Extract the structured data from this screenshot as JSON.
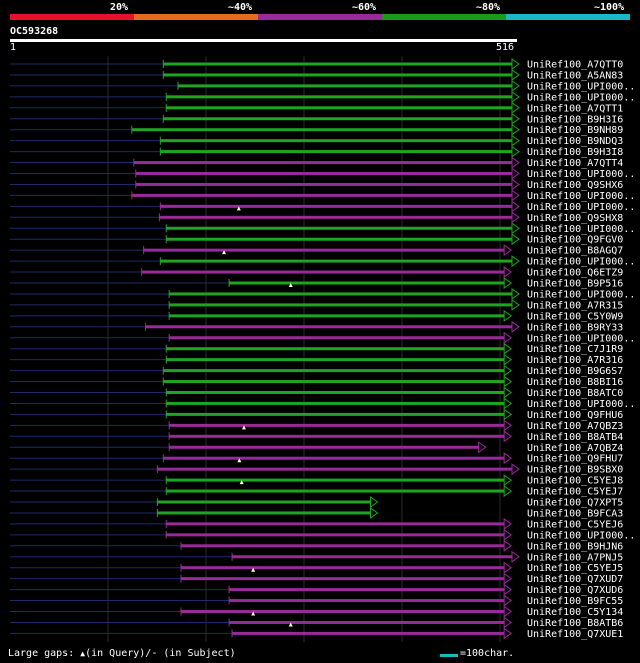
{
  "scale": {
    "labels": [
      "20%",
      "~40%",
      "~60%",
      "~80%",
      "~100%"
    ],
    "colors": [
      "#e8102a",
      "#e46c1c",
      "#9a2a9a",
      "#1a9a1a",
      "#18b8c8"
    ]
  },
  "query": {
    "id": "OC593268",
    "start_label": "1",
    "end_label": "516",
    "length": 516
  },
  "colors": {
    "green": "#1fa51f",
    "purple": "#9a2a9a",
    "dashes": "#1e2a6a",
    "grid": "#2a2a2a"
  },
  "hits": [
    {
      "name": "UniRef100_A7QTT0",
      "qs": 156,
      "qe": 516,
      "c": "green",
      "arrow": true
    },
    {
      "name": "UniRef100_A5AN83",
      "qs": 156,
      "qe": 516,
      "c": "green",
      "arrow": true
    },
    {
      "name": "UniRef100_UPI000..",
      "qs": 171,
      "qe": 516,
      "c": "green",
      "arrow": true
    },
    {
      "name": "UniRef100_UPI000..",
      "qs": 159,
      "qe": 516,
      "c": "green",
      "arrow": true
    },
    {
      "name": "UniRef100_A7QTT1",
      "qs": 159,
      "qe": 516,
      "c": "green",
      "arrow": true
    },
    {
      "name": "UniRef100_B9H3I6",
      "qs": 156,
      "qe": 516,
      "c": "green",
      "arrow": true
    },
    {
      "name": "UniRef100_B9NH89",
      "qs": 124,
      "qe": 516,
      "c": "green",
      "arrow": true
    },
    {
      "name": "UniRef100_B9NDQ3",
      "qs": 153,
      "qe": 516,
      "c": "green",
      "arrow": true
    },
    {
      "name": "UniRef100_B9H3I8",
      "qs": 153,
      "qe": 516,
      "c": "green",
      "arrow": true
    },
    {
      "name": "UniRef100_A7QTT4",
      "qs": 126,
      "qe": 516,
      "c": "purple",
      "arrow": true
    },
    {
      "name": "UniRef100_UPI000..",
      "qs": 128,
      "qe": 516,
      "c": "purple",
      "arrow": true
    },
    {
      "name": "UniRef100_Q9SHX6",
      "qs": 128,
      "qe": 516,
      "c": "purple",
      "arrow": true
    },
    {
      "name": "UniRef100_UPI000..",
      "qs": 124,
      "qe": 516,
      "c": "purple",
      "arrow": true
    },
    {
      "name": "UniRef100_UPI000..",
      "qs": 153,
      "qe": 516,
      "c": "purple",
      "arrow": true
    },
    {
      "name": "UniRef100_Q9SHX8",
      "qs": 152,
      "qe": 516,
      "c": "purple",
      "arrow": true
    },
    {
      "name": "UniRef100_UPI000..",
      "qs": 159,
      "qe": 516,
      "c": "green",
      "arrow": true
    },
    {
      "name": "UniRef100_Q9FGV0",
      "qs": 159,
      "qe": 516,
      "c": "green",
      "arrow": true
    },
    {
      "name": "UniRef100_B8AGQ7",
      "qs": 136,
      "qe": 508,
      "c": "purple",
      "arrow": true
    },
    {
      "name": "UniRef100_UPI000..",
      "qs": 153,
      "qe": 516,
      "c": "green",
      "arrow": true
    },
    {
      "name": "UniRef100_Q6ETZ9",
      "qs": 134,
      "qe": 508,
      "c": "purple",
      "arrow": true
    },
    {
      "name": "UniRef100_B9P516",
      "qs": 223,
      "qe": 508,
      "c": "green",
      "arrow": true
    },
    {
      "name": "UniRef100_UPI000..",
      "qs": 162,
      "qe": 516,
      "c": "green",
      "arrow": true
    },
    {
      "name": "UniRef100_A7R315",
      "qs": 162,
      "qe": 516,
      "c": "green",
      "arrow": true
    },
    {
      "name": "UniRef100_C5Y0W9",
      "qs": 162,
      "qe": 508,
      "c": "green",
      "arrow": true
    },
    {
      "name": "UniRef100_B9RY33",
      "qs": 138,
      "qe": 516,
      "c": "purple",
      "arrow": true
    },
    {
      "name": "UniRef100_UPI000..",
      "qs": 162,
      "qe": 508,
      "c": "purple",
      "arrow": true
    },
    {
      "name": "UniRef100_C7J1R9",
      "qs": 159,
      "qe": 508,
      "c": "green",
      "arrow": true
    },
    {
      "name": "UniRef100_A7R316",
      "qs": 159,
      "qe": 508,
      "c": "green",
      "arrow": true
    },
    {
      "name": "UniRef100_B9G6S7",
      "qs": 156,
      "qe": 508,
      "c": "green",
      "arrow": true
    },
    {
      "name": "UniRef100_B8BI16",
      "qs": 156,
      "qe": 508,
      "c": "green",
      "arrow": true
    },
    {
      "name": "UniRef100_B8ATC0",
      "qs": 159,
      "qe": 508,
      "c": "green",
      "arrow": true
    },
    {
      "name": "UniRef100_UPI000..",
      "qs": 159,
      "qe": 508,
      "c": "green",
      "arrow": true
    },
    {
      "name": "UniRef100_Q9FHU6",
      "qs": 159,
      "qe": 508,
      "c": "green",
      "arrow": true
    },
    {
      "name": "UniRef100_A7QBZ3",
      "qs": 162,
      "qe": 508,
      "c": "purple",
      "arrow": true
    },
    {
      "name": "UniRef100_B8ATB4",
      "qs": 162,
      "qe": 508,
      "c": "purple",
      "arrow": true
    },
    {
      "name": "UniRef100_A7QBZ4",
      "qs": 162,
      "qe": 482,
      "c": "purple",
      "arrow": true
    },
    {
      "name": "UniRef100_Q9FHU7",
      "qs": 156,
      "qe": 508,
      "c": "purple",
      "arrow": true
    },
    {
      "name": "UniRef100_B9SBX0",
      "qs": 150,
      "qe": 516,
      "c": "purple",
      "arrow": true
    },
    {
      "name": "UniRef100_C5YEJ8",
      "qs": 159,
      "qe": 508,
      "c": "green",
      "arrow": true
    },
    {
      "name": "UniRef100_C5YEJ7",
      "qs": 159,
      "qe": 508,
      "c": "green",
      "arrow": true
    },
    {
      "name": "UniRef100_Q7XPT5",
      "qs": 150,
      "qe": 372,
      "c": "green",
      "arrow": true
    },
    {
      "name": "UniRef100_B9FCA3",
      "qs": 150,
      "qe": 372,
      "c": "green",
      "arrow": true
    },
    {
      "name": "UniRef100_C5YEJ6",
      "qs": 159,
      "qe": 508,
      "c": "purple",
      "arrow": true
    },
    {
      "name": "UniRef100_UPI000..",
      "qs": 159,
      "qe": 508,
      "c": "purple",
      "arrow": true
    },
    {
      "name": "UniRef100_B9HJN6",
      "qs": 174,
      "qe": 508,
      "c": "purple",
      "arrow": true
    },
    {
      "name": "UniRef100_A7PNJ5",
      "qs": 226,
      "qe": 516,
      "c": "purple",
      "arrow": true
    },
    {
      "name": "UniRef100_C5YEJ5",
      "qs": 174,
      "qe": 508,
      "c": "purple",
      "arrow": true
    },
    {
      "name": "UniRef100_Q7XUD7",
      "qs": 174,
      "qe": 508,
      "c": "purple",
      "arrow": true
    },
    {
      "name": "UniRef100_Q7XUD6",
      "qs": 223,
      "qe": 508,
      "c": "purple",
      "arrow": true
    },
    {
      "name": "UniRef100_B9FC55",
      "qs": 223,
      "qe": 508,
      "c": "purple",
      "arrow": true
    },
    {
      "name": "UniRef100_C5Y134",
      "qs": 174,
      "qe": 508,
      "c": "purple",
      "arrow": true
    },
    {
      "name": "UniRef100_B8ATB6",
      "qs": 223,
      "qe": 508,
      "c": "purple",
      "arrow": true
    },
    {
      "name": "UniRef100_Q7XUE1",
      "qs": 226,
      "qe": 508,
      "c": "purple",
      "arrow": true
    }
  ],
  "gaps_query": [
    13,
    17,
    20,
    33,
    36,
    38,
    46,
    50,
    51
  ],
  "footer": {
    "gaps_label": "Large gaps:",
    "query_glyph": "▲",
    "query_text": "(in Query)/",
    "subject_text": "- (in Subject)",
    "legend_text": "=100char."
  }
}
